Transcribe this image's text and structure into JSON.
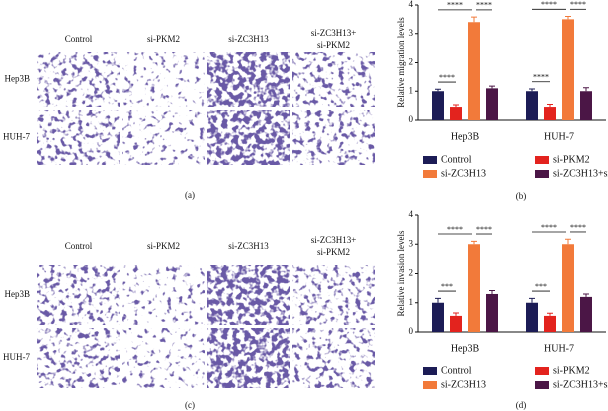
{
  "image_panels": [
    {
      "label": "(a)",
      "columns": [
        [
          "Control"
        ],
        [
          "si-PKM2"
        ],
        [
          "si-ZC3H13"
        ],
        [
          "si-ZC3H13+",
          "si-PKM2"
        ]
      ],
      "rows": [
        "Hep3B",
        "HUH-7"
      ]
    },
    {
      "label": "(c)",
      "columns": [
        [
          "Control"
        ],
        [
          "si-PKM2"
        ],
        [
          "si-ZC3H13"
        ],
        [
          "si-ZC3H13+",
          "si-PKM2"
        ]
      ],
      "rows": [
        "Hep3B",
        "HUH-7"
      ]
    }
  ],
  "chart_data": [
    {
      "type": "bar",
      "panel_label": "(b)",
      "y_label": "Relative migration levels",
      "categories": [
        "Hep3B",
        "HUH-7"
      ],
      "series": [
        {
          "name": "Control",
          "color": "#1c1c56",
          "values": [
            1.0,
            1.0
          ],
          "errors": [
            0.07,
            0.08
          ]
        },
        {
          "name": "si-PKM2",
          "color": "#e3231e",
          "values": [
            0.45,
            0.45
          ],
          "errors": [
            0.07,
            0.09
          ]
        },
        {
          "name": "si-ZC3H13",
          "color": "#f27a3a",
          "values": [
            3.4,
            3.5
          ],
          "errors": [
            0.18,
            0.1
          ]
        },
        {
          "name": "si-ZC3H13+si-PKM2",
          "color": "#4b1646",
          "values": [
            1.1,
            1.0
          ],
          "errors": [
            0.08,
            0.12
          ]
        }
      ],
      "significance": [
        [
          "****",
          "****",
          "****"
        ],
        [
          "****",
          "****",
          "****"
        ]
      ],
      "ylim": [
        0,
        4
      ],
      "yticks": [
        0,
        1,
        2,
        3,
        4
      ]
    },
    {
      "type": "bar",
      "panel_label": "(d)",
      "y_label": "Relative invasion levels",
      "categories": [
        "Hep3B",
        "HUH-7"
      ],
      "series": [
        {
          "name": "Control",
          "color": "#1c1c56",
          "values": [
            1.0,
            1.0
          ],
          "errors": [
            0.15,
            0.15
          ]
        },
        {
          "name": "si-PKM2",
          "color": "#e3231e",
          "values": [
            0.55,
            0.55
          ],
          "errors": [
            0.1,
            0.09
          ]
        },
        {
          "name": "si-ZC3H13",
          "color": "#f27a3a",
          "values": [
            3.0,
            3.0
          ],
          "errors": [
            0.1,
            0.17
          ]
        },
        {
          "name": "si-ZC3H13+si-PKM2",
          "color": "#4b1646",
          "values": [
            1.3,
            1.2
          ],
          "errors": [
            0.12,
            0.1
          ]
        }
      ],
      "significance": [
        [
          "***",
          "****",
          "****"
        ],
        [
          "***",
          "****",
          "****"
        ]
      ],
      "ylim": [
        0,
        4
      ],
      "yticks": [
        0,
        1,
        2,
        3,
        4
      ]
    }
  ]
}
